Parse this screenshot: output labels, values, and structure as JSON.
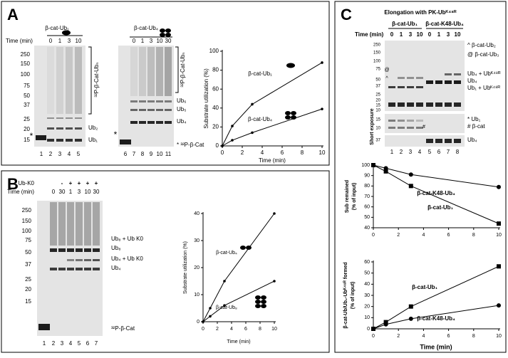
{
  "panel_labels": [
    "A",
    "B",
    "C"
  ],
  "gels": [
    {
      "header": "β-cat-Ub₁",
      "time_label": "Time (min)",
      "times": [
        0,
        1,
        3,
        10
      ],
      "mw": [
        250,
        150,
        100,
        75,
        50,
        37,
        25,
        20,
        15
      ],
      "labels": [
        "³²P-β-Cat-Ubₙ",
        "Ub₂",
        "Ub₁"
      ],
      "lanes": [
        1,
        2,
        3,
        4,
        5
      ],
      "star": "*"
    },
    {
      "header": "β-cat-Ub₄",
      "times": [
        0,
        1,
        3,
        10,
        30
      ],
      "labels": [
        "³²P-β-Cat-Ubₙ",
        "Ub₆",
        "Ub₅",
        "Ub₄",
        "* ³²P-β-Cat"
      ],
      "lanes": [
        6,
        7,
        8,
        9,
        10,
        11
      ],
      "star": "*"
    },
    {
      "k0_label": "Ub-K0",
      "signs": [
        "-",
        "+",
        "+",
        "+",
        "+"
      ],
      "time_label": "Time (min)",
      "times": [
        0,
        30,
        1,
        3,
        10,
        30
      ],
      "mw": [
        250,
        150,
        100,
        75,
        50,
        37,
        25,
        20,
        15
      ],
      "labels": [
        "Ub₈ + Ub K0",
        "Ub₈",
        "Ub₄ + Ub K0",
        "Ub₄",
        "³²P-β-Cat"
      ],
      "lanes": [
        1,
        2,
        3,
        4,
        5,
        6,
        7
      ]
    },
    {
      "title": "Elongation with PK-Ubᴷ⁴⁸ᴿ",
      "headers": [
        "β-cat-Ub₁",
        "β-cat-K48-Ub₄"
      ],
      "time_label": "Time (min)",
      "times": [
        0,
        1,
        3,
        10,
        0,
        1,
        3,
        10
      ],
      "mw": [
        250,
        150,
        100,
        75,
        50,
        37,
        25,
        20,
        15,
        10
      ],
      "labels": [
        "^ β-cat-Ub₂",
        "@ β-cat-Ub₃",
        "Ub₄ + Ubᴷ⁴⁸ᴿ",
        "Ub₄",
        "Ub₁ + Ubᴷ⁴⁸ᴿ"
      ],
      "gel_marks": [
        "@",
        "^",
        "#"
      ],
      "short_label": "Short exposure",
      "short_mw": [
        15,
        10
      ],
      "short_labels": [
        "* Ub₁",
        "# β-cat"
      ],
      "ub4_mw": [
        37
      ],
      "ub4_labels": [
        "Ub₄"
      ],
      "lanes": [
        1,
        2,
        3,
        4,
        5,
        6,
        7,
        8
      ]
    }
  ],
  "chart_data": [
    {
      "type": "line",
      "ylabel": [
        "Substrate utilization (%)"
      ],
      "xlabel": "Time (min)",
      "x": [
        0,
        1,
        3,
        10
      ],
      "xlim": [
        0,
        10
      ],
      "xticks": [
        0,
        2,
        4,
        6,
        8,
        10
      ],
      "ylim": [
        0,
        100
      ],
      "yticks": [
        0,
        20,
        40,
        60,
        80,
        100
      ],
      "series": [
        {
          "name": "β-cat-Ub₁",
          "color": "#000000",
          "marker": "circle",
          "values": [
            0,
            21,
            44,
            88
          ]
        },
        {
          "name": "β-cat-Ub₄",
          "color": "#000000",
          "marker": "circle",
          "values": [
            0,
            6,
            14,
            39
          ]
        }
      ]
    },
    {
      "type": "line",
      "ylabel": [
        "Substrate utilization (%)"
      ],
      "xlabel": "Time (min)",
      "x": [
        0,
        1,
        3,
        10
      ],
      "xlim": [
        0,
        10
      ],
      "xticks": [
        0,
        2,
        4,
        6,
        8,
        10
      ],
      "ylim": [
        0,
        40
      ],
      "yticks": [
        0,
        10,
        20,
        30,
        40
      ],
      "series": [
        {
          "name": "β-cat-Ub₄",
          "color": "#000000",
          "marker": "circle",
          "values": [
            0,
            5,
            15,
            40
          ]
        },
        {
          "name": "β-cat-Ub₈",
          "color": "#000000",
          "marker": "circle",
          "values": [
            0,
            2,
            6,
            15
          ]
        }
      ]
    },
    {
      "type": "line",
      "ylabel": [
        "Sub remained",
        "(% of input)"
      ],
      "x": [
        0,
        1,
        3,
        10
      ],
      "xlim": [
        0,
        10
      ],
      "xticks": [
        0,
        2,
        4,
        6,
        8,
        10
      ],
      "ylim": [
        40,
        100
      ],
      "yticks": [
        40,
        50,
        60,
        70,
        80,
        90,
        100
      ],
      "series": [
        {
          "name": "β-cat-K48-Ub₄",
          "color": "#000000",
          "marker": "circle",
          "values": [
            100,
            97,
            91,
            79
          ]
        },
        {
          "name": "β-cat-Ub₁",
          "color": "#000000",
          "marker": "square",
          "values": [
            100,
            94,
            80,
            44
          ]
        }
      ]
    },
    {
      "type": "line",
      "ylabel": [
        "β-cat-Ub/Ub₂-Ubᴷ⁴⁸ᴿ formed",
        "(% of input)"
      ],
      "xlabel": "Time (min)",
      "x": [
        0,
        1,
        3,
        10
      ],
      "xlim": [
        0,
        10
      ],
      "xticks": [
        0,
        2,
        4,
        6,
        8,
        10
      ],
      "ylim": [
        0,
        60
      ],
      "yticks": [
        0,
        10,
        20,
        30,
        40,
        50,
        60
      ],
      "series": [
        {
          "name": "β-cat-Ub₁",
          "color": "#000000",
          "marker": "square",
          "values": [
            0,
            6,
            20,
            56
          ]
        },
        {
          "name": "β-cat-K48-Ub₄",
          "color": "#000000",
          "marker": "circle",
          "values": [
            0,
            4,
            9,
            21
          ]
        }
      ]
    }
  ]
}
